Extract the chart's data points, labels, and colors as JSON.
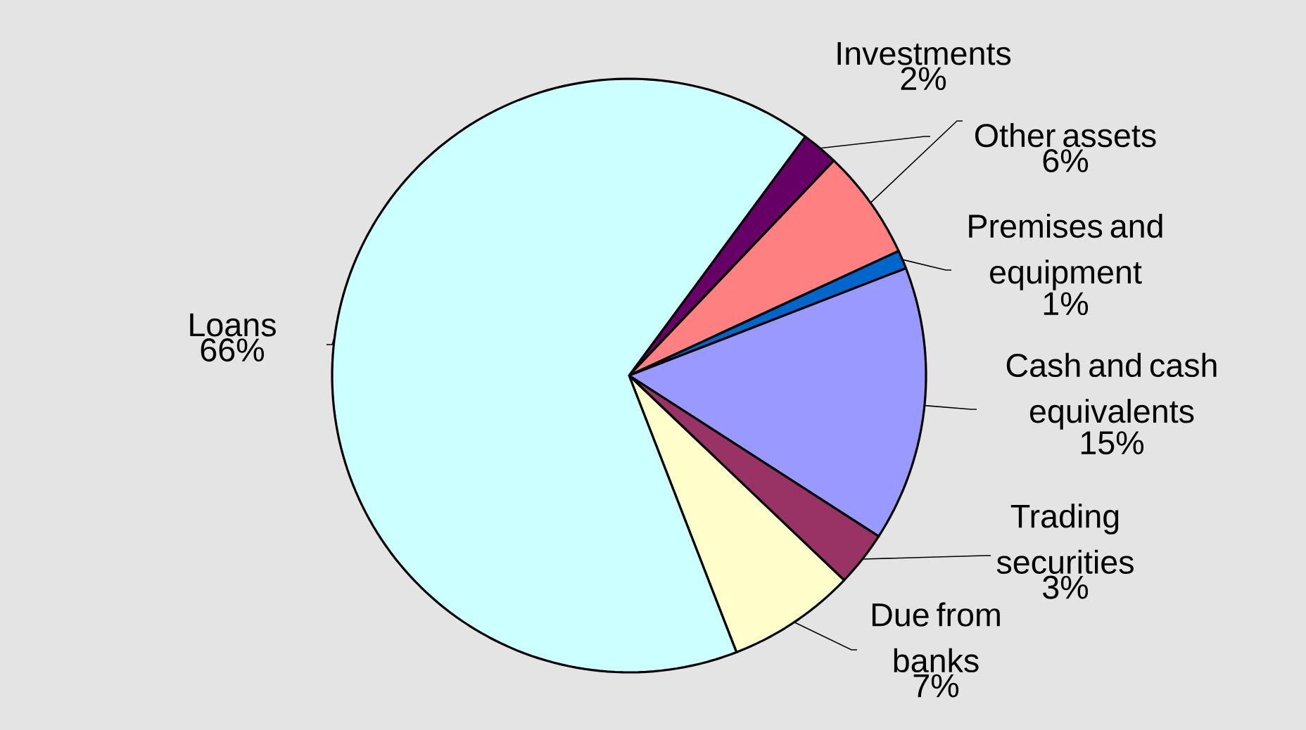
{
  "chart_data": {
    "type": "pie",
    "categories": [
      "Investments",
      "Other assets",
      "Premises and equipment",
      "Cash and cash equivalents",
      "Trading securities",
      "Due from banks",
      "Loans"
    ],
    "values": [
      2,
      6,
      1,
      15,
      3,
      7,
      66
    ],
    "colors": [
      "#660066",
      "#ff8080",
      "#0066cc",
      "#9999ff",
      "#993366",
      "#ffffcc",
      "#ccffff"
    ],
    "value_labels": [
      "2%",
      "6%",
      "1%",
      "15%",
      "3%",
      "7%",
      "66%"
    ]
  }
}
